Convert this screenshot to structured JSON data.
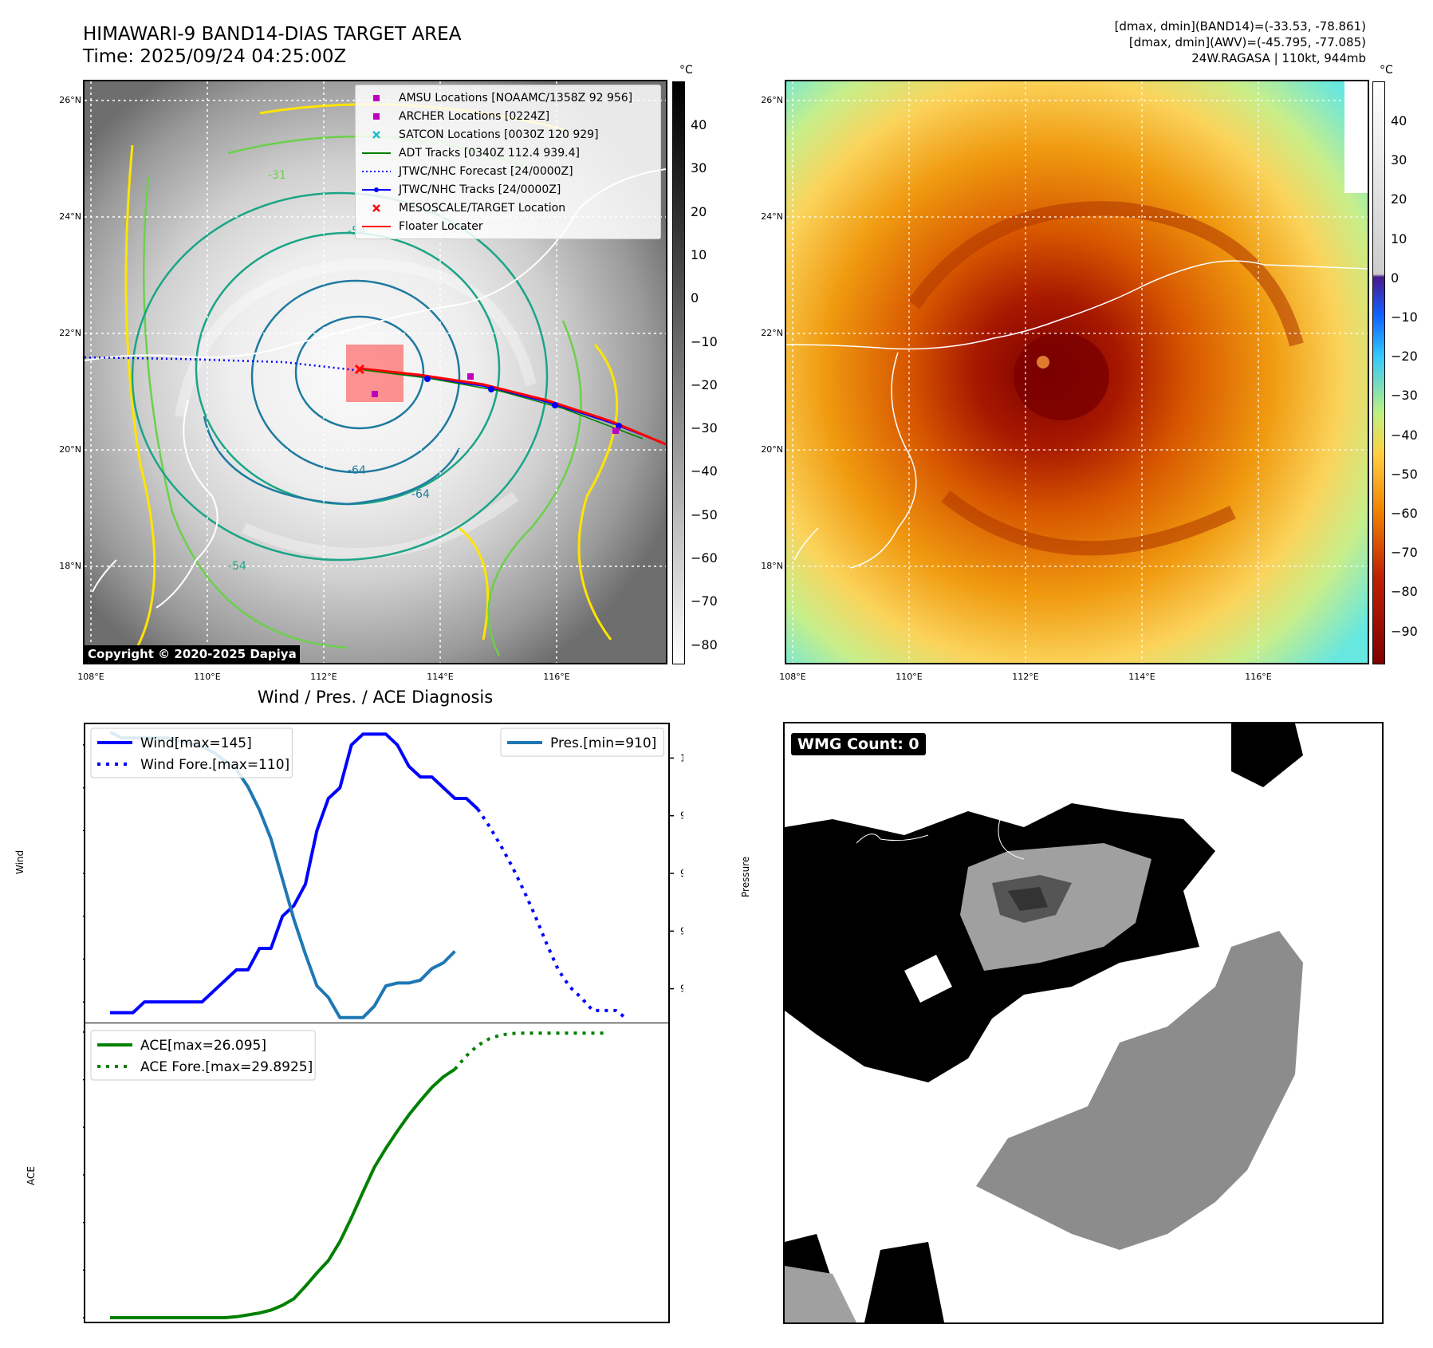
{
  "header": {
    "title_line1": "HIMAWARI-9 BAND14-DIAS TARGET AREA",
    "title_line2": "Time: 2025/09/24 04:25:00Z",
    "info_line1": "[dmax, dmin](BAND14)=(-33.53, -78.861)",
    "info_line2": "[dmax, dmin](AWV)=(-45.795, -77.085)",
    "info_line3": "24W.RAGASA | 110kt, 944mb"
  },
  "map_left": {
    "lat_ticks": [
      "26°N",
      "24°N",
      "22°N",
      "20°N",
      "18°N"
    ],
    "lon_ticks": [
      "108°E",
      "110°E",
      "112°E",
      "114°E",
      "116°E"
    ],
    "copyright": "Copyright © 2020-2025 Dapiya",
    "contour_labels": [
      "-64",
      "-64",
      "-54",
      "-54",
      "-31"
    ],
    "legend": [
      {
        "label": "AMSU Locations [NOAAMC/1358Z 92 956]",
        "marker": "square",
        "color": "#bf00bf"
      },
      {
        "label": "ARCHER Locations [0224Z]",
        "marker": "square",
        "color": "#bf00bf"
      },
      {
        "label": "SATCON Locations [0030Z 120 929]",
        "marker": "x",
        "color": "#17becf"
      },
      {
        "label": "ADT Tracks [0340Z 112.4 939.4]",
        "marker": "line",
        "color": "#008000"
      },
      {
        "label": "JTWC/NHC Forecast [24/0000Z]",
        "marker": "dotted",
        "color": "#0000ff"
      },
      {
        "label": "JTWC/NHC Tracks [24/0000Z]",
        "marker": "dotline",
        "color": "#0000ff"
      },
      {
        "label": "MESOSCALE/TARGET Location",
        "marker": "x",
        "color": "#ff0000"
      },
      {
        "label": "Floater Locater",
        "marker": "line",
        "color": "#ff0000"
      }
    ],
    "colorbar_unit": "°C",
    "colorbar_ticks": [
      "40",
      "30",
      "20",
      "10",
      "0",
      "−10",
      "−20",
      "−30",
      "−40",
      "−50",
      "−60",
      "−70",
      "−80"
    ]
  },
  "map_right": {
    "lat_ticks": [
      "26°N",
      "24°N",
      "22°N",
      "20°N",
      "18°N"
    ],
    "lon_ticks": [
      "108°E",
      "110°E",
      "112°E",
      "114°E",
      "116°E"
    ],
    "colorbar_unit": "°C",
    "colorbar_ticks": [
      "40",
      "30",
      "20",
      "10",
      "0",
      "−10",
      "−20",
      "−30",
      "−40",
      "−50",
      "−60",
      "−70",
      "−80",
      "−90"
    ]
  },
  "wmg": {
    "label": "WMG Count: 0"
  },
  "chart_data": [
    {
      "type": "line",
      "title": "Wind / Pres. / ACE Diagnosis",
      "ylabel": "Wind",
      "ylim": [
        10,
        150
      ],
      "yticks": [
        20,
        40,
        60,
        80,
        100,
        120,
        140
      ],
      "series": [
        {
          "name": "Wind[max=145]",
          "color": "#0000ff",
          "style": "solid",
          "values": [
            15,
            15,
            15,
            20,
            20,
            20,
            20,
            20,
            20,
            25,
            30,
            35,
            35,
            45,
            45,
            60,
            65,
            75,
            100,
            115,
            120,
            140,
            145,
            145,
            145,
            140,
            130,
            125,
            125,
            120,
            115,
            115,
            110
          ]
        },
        {
          "name": "Wind Fore.[max=110]",
          "color": "#0000ff",
          "style": "dotted",
          "x_start": 32,
          "values": [
            110,
            102,
            93,
            83,
            72,
            60,
            47,
            35,
            27,
            22,
            16,
            16,
            16,
            12
          ]
        }
      ]
    },
    {
      "type": "line",
      "ylabel": "Pressure",
      "ylim": [
        908,
        1012
      ],
      "yticks": [
        920,
        940,
        960,
        980,
        1000
      ],
      "series": [
        {
          "name": "Pres.[min=910]",
          "color": "#1f77b4",
          "style": "solid",
          "values": [
            1009,
            1007,
            1007,
            1007,
            1007,
            1007,
            1006,
            1005,
            1004,
            1002,
            999,
            996,
            990,
            982,
            972,
            958,
            944,
            932,
            921,
            917,
            910,
            910,
            910,
            914,
            921,
            922,
            922,
            923,
            927,
            929,
            933
          ]
        }
      ]
    },
    {
      "type": "line",
      "ylabel": "ACE",
      "ylim": [
        -0.5,
        31
      ],
      "yticks": [
        0,
        5,
        10,
        15,
        20,
        25,
        30
      ],
      "series": [
        {
          "name": "ACE[max=26.095]",
          "color": "#008000",
          "style": "solid",
          "values": [
            0,
            0,
            0,
            0,
            0,
            0,
            0,
            0,
            0,
            0,
            0,
            0.1,
            0.3,
            0.5,
            0.8,
            1.3,
            2.0,
            3.3,
            4.7,
            6.0,
            8.0,
            10.5,
            13.2,
            15.8,
            17.8,
            19.6,
            21.3,
            22.8,
            24.2,
            25.3,
            26.095
          ]
        },
        {
          "name": "ACE Fore.[max=29.8925]",
          "color": "#008000",
          "style": "dotted",
          "x_start": 30,
          "values": [
            26.095,
            27.5,
            28.6,
            29.3,
            29.7,
            29.85,
            29.89,
            29.8925,
            29.8925,
            29.8925,
            29.8925,
            29.8925,
            29.8925,
            29.8925
          ]
        }
      ]
    }
  ]
}
